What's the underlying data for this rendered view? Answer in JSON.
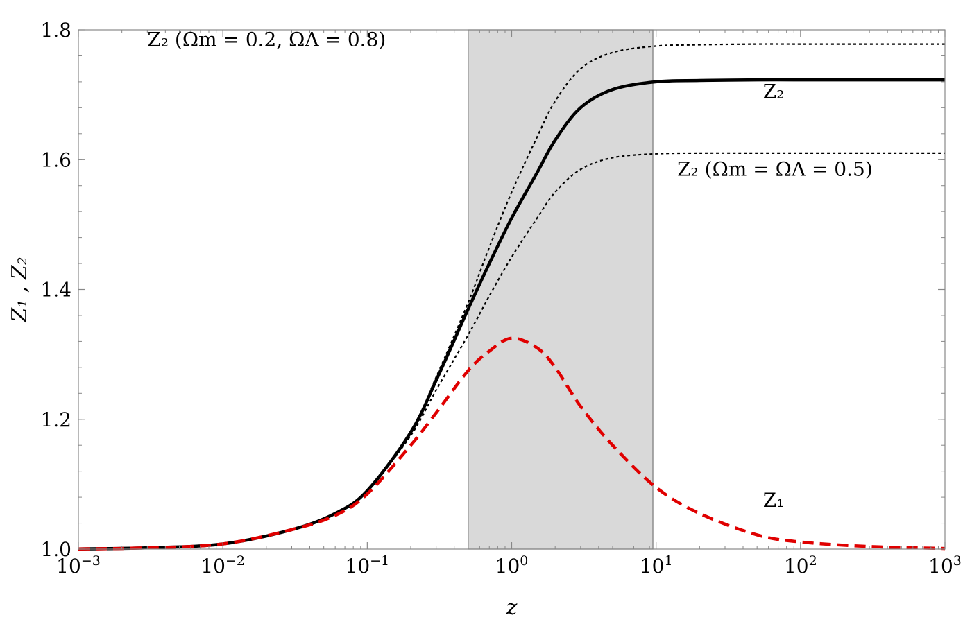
{
  "chart_data": {
    "type": "line",
    "xscale": "log",
    "xlim": [
      0.001,
      1000
    ],
    "ylim": [
      1.0,
      1.8
    ],
    "grid": false,
    "x_ticks": [
      {
        "value": 0.001,
        "base": "10",
        "exp": "−3"
      },
      {
        "value": 0.01,
        "base": "10",
        "exp": "−2"
      },
      {
        "value": 0.1,
        "base": "10",
        "exp": "−1"
      },
      {
        "value": 1,
        "base": "10",
        "exp": "0"
      },
      {
        "value": 10,
        "base": "10",
        "exp": "1"
      },
      {
        "value": 100,
        "base": "10",
        "exp": "2"
      },
      {
        "value": 1000,
        "base": "10",
        "exp": "3"
      }
    ],
    "y_ticks": [
      {
        "value": 1.0,
        "label": "1.0"
      },
      {
        "value": 1.2,
        "label": "1.2"
      },
      {
        "value": 1.4,
        "label": "1.4"
      },
      {
        "value": 1.6,
        "label": "1.6"
      },
      {
        "value": 1.8,
        "label": "1.8"
      }
    ],
    "xlabel": "z",
    "ylabel": "Z₁ ,  Z₂",
    "shaded_region": {
      "x": [
        0.5,
        9.5
      ],
      "color": "#d9d9d9"
    },
    "x": [
      0.001,
      0.003,
      0.01,
      0.03,
      0.06,
      0.1,
      0.2,
      0.3,
      0.5,
      0.7,
      1,
      1.5,
      2,
      3,
      5,
      10,
      20,
      50,
      100,
      300,
      1000
    ],
    "series": [
      {
        "name": "Z₂",
        "style": "solid",
        "color": "#000000",
        "values": [
          1.0003,
          1.002,
          1.008,
          1.03,
          1.055,
          1.09,
          1.18,
          1.26,
          1.37,
          1.44,
          1.51,
          1.58,
          1.63,
          1.68,
          1.708,
          1.72,
          1.722,
          1.723,
          1.723,
          1.723,
          1.723
        ]
      },
      {
        "name": "Z₂ (Ωm = 0.2, ΩΛ = 0.8)",
        "style": "dotted",
        "color": "#000000",
        "values": [
          1.0003,
          1.002,
          1.008,
          1.03,
          1.055,
          1.09,
          1.18,
          1.265,
          1.38,
          1.465,
          1.55,
          1.635,
          1.69,
          1.74,
          1.765,
          1.775,
          1.777,
          1.778,
          1.778,
          1.778,
          1.778
        ]
      },
      {
        "name": "Z₂ (Ωm = ΩΛ = 0.5)",
        "style": "dotted",
        "color": "#000000",
        "values": [
          1.0003,
          1.002,
          1.008,
          1.03,
          1.055,
          1.09,
          1.175,
          1.245,
          1.33,
          1.39,
          1.45,
          1.51,
          1.55,
          1.585,
          1.603,
          1.609,
          1.61,
          1.61,
          1.61,
          1.61,
          1.61
        ]
      },
      {
        "name": "Z₁",
        "style": "dashed",
        "color": "#e00000",
        "values": [
          1.0003,
          1.002,
          1.008,
          1.03,
          1.052,
          1.085,
          1.16,
          1.21,
          1.275,
          1.305,
          1.325,
          1.31,
          1.28,
          1.22,
          1.16,
          1.095,
          1.055,
          1.022,
          1.011,
          1.004,
          1.001
        ]
      }
    ],
    "annotations": [
      {
        "text": "Z₂ (Ωm = 0.2, ΩΛ = 0.8)",
        "x": 0.003,
        "y": 1.775
      },
      {
        "text": "Z₂",
        "x": 55,
        "y": 1.695
      },
      {
        "text": "Z₂ (Ωm = ΩΛ = 0.5)",
        "x": 14,
        "y": 1.575
      },
      {
        "text": "Z₁",
        "x": 55,
        "y": 1.065
      }
    ]
  }
}
